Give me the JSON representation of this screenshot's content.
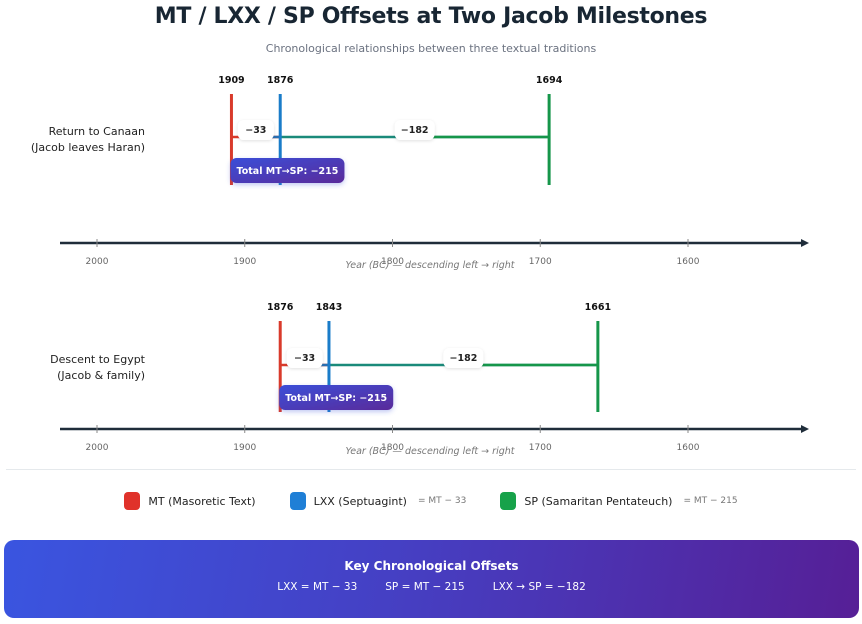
{
  "header": {
    "title": "MT / LXX / SP Offsets at Two Jacob Milestones",
    "subtitle": "Chronological relationships between three textual traditions"
  },
  "colors": {
    "MT": "#d93a2b",
    "LXX": "#1a7cc9",
    "SP": "#16964a",
    "axis": "#1f2d3a",
    "total_badge_start": "#3b4fd8",
    "total_badge_end": "#5a2a9a"
  },
  "axis": {
    "domain": [
      2025,
      1615
    ],
    "ticks": [
      "2000",
      "1900",
      "1800",
      "1700",
      "1600"
    ],
    "caption": "Year (BC) — descending left → right"
  },
  "milestones": [
    {
      "label_line1": "Return to Canaan",
      "label_line2": "(Jacob leaves Haran)",
      "MT": 1909,
      "LXX": 1876,
      "SP": 1694,
      "MT_label": "1909",
      "LXX_label": "1876",
      "SP_label": "1694",
      "diff_mt_lxx": "−33",
      "diff_lxx_sp": "−182",
      "total": "Total MT→SP: −215"
    },
    {
      "label_line1": "Descent to Egypt",
      "label_line2": "(Jacob & family)",
      "MT": 1876,
      "LXX": 1843,
      "SP": 1661,
      "MT_label": "1876",
      "LXX_label": "1843",
      "SP_label": "1661",
      "diff_mt_lxx": "−33",
      "diff_lxx_sp": "−182",
      "total": "Total MT→SP: −215"
    }
  ],
  "legend": [
    {
      "label": "MT (Masoretic Text)",
      "note": "",
      "color": "#e0322a"
    },
    {
      "label": "LXX (Septuagint)",
      "note": "= MT − 33",
      "color": "#1f7fd6"
    },
    {
      "label": "SP (Samaritan Pentateuch)",
      "note": "= MT − 215",
      "color": "#17a24a"
    }
  ],
  "key_box": {
    "title": "Key Chronological Offsets",
    "items": [
      "LXX = MT − 33",
      "SP = MT − 215",
      "LXX → SP = −182"
    ]
  }
}
